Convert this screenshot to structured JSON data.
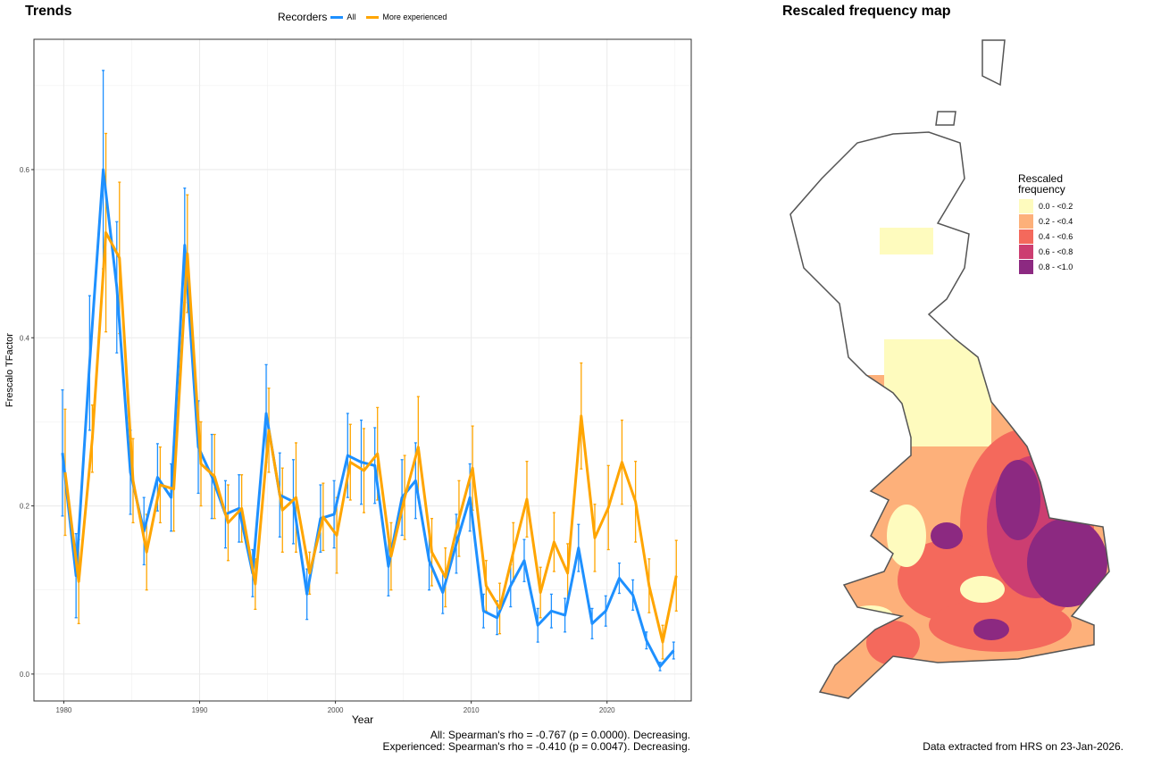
{
  "chart_data": [
    {
      "type": "line",
      "title": "Trends",
      "xlabel": "Year",
      "ylabel": "Frescalo TFactor",
      "xlim": [
        1977.8,
        2026.2
      ],
      "ylim": [
        -0.032,
        0.755
      ],
      "xticks": [
        1980,
        1990,
        2000,
        2010,
        2020
      ],
      "yticks": [
        0.0,
        0.2,
        0.4,
        0.6
      ],
      "ytick_labels": [
        "0.0",
        "0.2",
        "0.4",
        "0.6"
      ],
      "grid": true,
      "legend": {
        "title": "Recorders",
        "placement": "top-center",
        "entries": [
          "All",
          "More experienced"
        ]
      },
      "x": [
        1980,
        1981,
        1982,
        1983,
        1984,
        1985,
        1986,
        1987,
        1988,
        1989,
        1990,
        1991,
        1992,
        1993,
        1994,
        1995,
        1996,
        1997,
        1998,
        1999,
        2000,
        2001,
        2002,
        2003,
        2004,
        2005,
        2006,
        2007,
        2008,
        2009,
        2010,
        2011,
        2012,
        2013,
        2014,
        2015,
        2016,
        2017,
        2018,
        2019,
        2020,
        2021,
        2022,
        2023,
        2024,
        2025
      ],
      "series": [
        {
          "name": "All",
          "color": "#1E90FF",
          "values": [
            0.263,
            0.117,
            0.37,
            0.6,
            0.46,
            0.24,
            0.17,
            0.234,
            0.21,
            0.51,
            0.27,
            0.235,
            0.19,
            0.197,
            0.12,
            0.31,
            0.213,
            0.205,
            0.095,
            0.185,
            0.19,
            0.26,
            0.252,
            0.248,
            0.128,
            0.21,
            0.23,
            0.135,
            0.097,
            0.155,
            0.21,
            0.075,
            0.067,
            0.105,
            0.135,
            0.058,
            0.075,
            0.07,
            0.15,
            0.06,
            0.075,
            0.114,
            0.094,
            0.04,
            0.009,
            0.028
          ],
          "errors": [
            0.075,
            0.05,
            0.08,
            0.118,
            0.078,
            0.05,
            0.04,
            0.04,
            0.04,
            0.068,
            0.055,
            0.05,
            0.04,
            0.04,
            0.028,
            0.058,
            0.05,
            0.05,
            0.03,
            0.04,
            0.04,
            0.05,
            0.05,
            0.045,
            0.035,
            0.045,
            0.045,
            0.035,
            0.025,
            0.035,
            0.04,
            0.02,
            0.02,
            0.025,
            0.025,
            0.02,
            0.02,
            0.02,
            0.028,
            0.018,
            0.018,
            0.018,
            0.018,
            0.01,
            0.005,
            0.01
          ]
        },
        {
          "name": "More experienced",
          "color": "#FFA500",
          "values": [
            0.24,
            0.11,
            0.28,
            0.525,
            0.495,
            0.23,
            0.145,
            0.225,
            0.22,
            0.5,
            0.25,
            0.235,
            0.18,
            0.197,
            0.107,
            0.29,
            0.195,
            0.21,
            0.12,
            0.187,
            0.165,
            0.252,
            0.242,
            0.262,
            0.14,
            0.21,
            0.27,
            0.145,
            0.115,
            0.185,
            0.245,
            0.105,
            0.078,
            0.145,
            0.208,
            0.097,
            0.157,
            0.12,
            0.307,
            0.162,
            0.198,
            0.252,
            0.205,
            0.105,
            0.038,
            0.117
          ],
          "errors": [
            0.075,
            0.05,
            0.04,
            0.118,
            0.09,
            0.05,
            0.045,
            0.045,
            0.05,
            0.07,
            0.05,
            0.05,
            0.045,
            0.04,
            0.03,
            0.05,
            0.05,
            0.065,
            0.025,
            0.04,
            0.045,
            0.045,
            0.05,
            0.055,
            0.04,
            0.05,
            0.06,
            0.04,
            0.035,
            0.045,
            0.05,
            0.03,
            0.03,
            0.035,
            0.045,
            0.03,
            0.035,
            0.035,
            0.063,
            0.04,
            0.05,
            0.05,
            0.048,
            0.032,
            0.02,
            0.042
          ]
        }
      ],
      "annotations": [
        "All: Spearman's rho = -0.767 (p = 0.0000). Decreasing.",
        "Experienced: Spearman's rho = -0.410 (p = 0.0047). Decreasing."
      ]
    }
  ],
  "map": {
    "title": "Rescaled frequency map",
    "legend_title": "Rescaled frequency",
    "legend": [
      {
        "label": "0.0 - <0.2",
        "color": "#FEFBBE"
      },
      {
        "label": "0.2 - <0.4",
        "color": "#FDB07A"
      },
      {
        "label": "0.4 - <0.6",
        "color": "#F4695C"
      },
      {
        "label": "0.6 - <0.8",
        "color": "#CC3E71"
      },
      {
        "label": "0.8 - <1.0",
        "color": "#8C2981"
      }
    ],
    "footer": "Data extracted from HRS on 23-Jan-2026."
  }
}
